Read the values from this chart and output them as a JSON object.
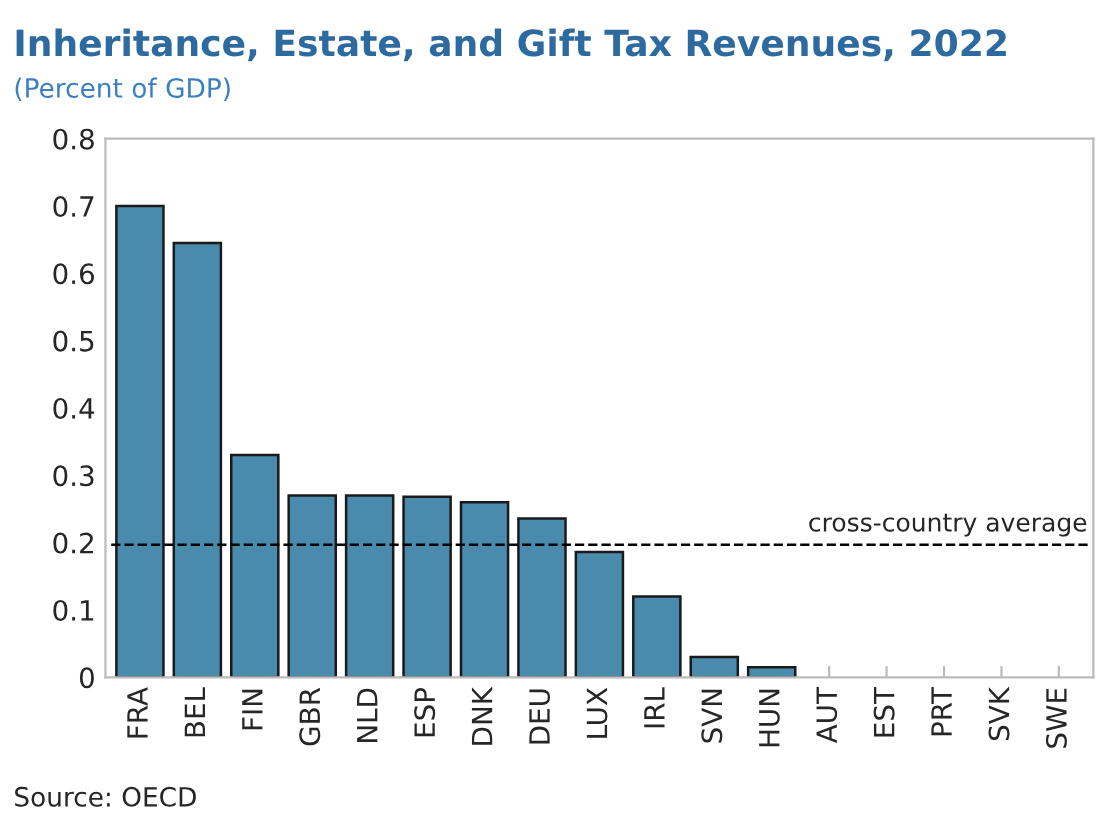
{
  "chart_data": {
    "type": "bar",
    "title": "Inheritance, Estate, and Gift Tax Revenues, 2022",
    "subtitle": "(Percent of GDP)",
    "categories": [
      "FRA",
      "BEL",
      "FIN",
      "GBR",
      "NLD",
      "ESP",
      "DNK",
      "DEU",
      "LUX",
      "IRL",
      "SVN",
      "HUN",
      "AUT",
      "EST",
      "PRT",
      "SVK",
      "SWE"
    ],
    "values": [
      0.7,
      0.645,
      0.33,
      0.27,
      0.27,
      0.268,
      0.26,
      0.236,
      0.186,
      0.12,
      0.03,
      0.015,
      0,
      0,
      0,
      0,
      0
    ],
    "color": "#4a8aac",
    "ylim": [
      0,
      0.8
    ],
    "yticks": [
      {
        "value": 0,
        "label": "0"
      },
      0.1,
      0.2,
      0.3,
      0.4,
      0.5,
      0.6,
      0.7,
      0.8
    ],
    "ref_lines": [
      {
        "axis": "y",
        "value": 0.197,
        "label": "cross-country average",
        "color": "#000000",
        "line_style": "dashed"
      }
    ],
    "annotations": [
      "Source: OECD"
    ],
    "grid": false,
    "legend": false
  }
}
